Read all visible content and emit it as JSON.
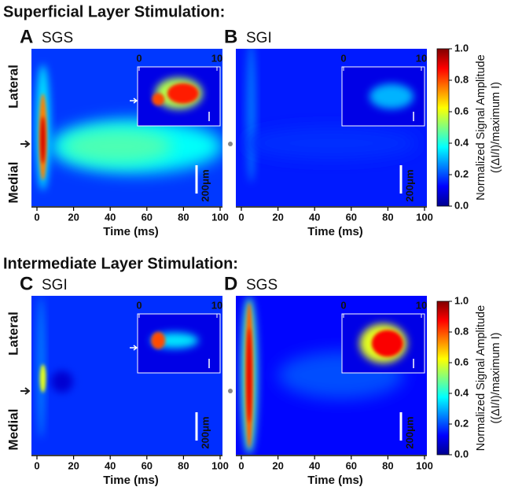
{
  "section_titles": [
    "Superficial Layer Stimulation:",
    "Intermediate Layer Stimulation:"
  ],
  "chart_data": [
    {
      "type": "heatmap",
      "label": "A",
      "title": "SGS",
      "xlabel": "Time (ms)",
      "xlim": [
        0,
        100
      ],
      "xticks": [
        0,
        20,
        40,
        60,
        80,
        100
      ],
      "ylabels": [
        "Lateral",
        "Medial"
      ],
      "inset_xlim": [
        0,
        10
      ],
      "inset_xticks": [
        0,
        10
      ],
      "scalebar_label": "200μm"
    },
    {
      "type": "heatmap",
      "label": "B",
      "title": "SGI",
      "xlabel": "Time (ms)",
      "xlim": [
        0,
        100
      ],
      "xticks": [
        0,
        20,
        40,
        60,
        80,
        100
      ],
      "inset_xlim": [
        0,
        10
      ],
      "inset_xticks": [
        0,
        10
      ],
      "scalebar_label": "200μm",
      "colorbar_label": [
        "Normalized Signal Amplitude",
        "((ΔI/I)/maximum I)"
      ],
      "colorbar_lim": [
        0,
        1
      ],
      "colorbar_ticks": [
        {
          "value": 0,
          "label": "0.0"
        },
        {
          "value": 0.2,
          "label": "0.2"
        },
        {
          "value": 0.4,
          "label": "0.4"
        },
        {
          "value": 0.6,
          "label": "0.6"
        },
        {
          "value": 0.8,
          "label": "0.8"
        },
        {
          "value": 1,
          "label": "1.0"
        }
      ]
    },
    {
      "type": "heatmap",
      "label": "C",
      "title": "SGI",
      "xlabel": "Time (ms)",
      "xlim": [
        0,
        100
      ],
      "xticks": [
        0,
        20,
        40,
        60,
        80,
        100
      ],
      "ylabels": [
        "Lateral",
        "Medial"
      ],
      "inset_xlim": [
        0,
        10
      ],
      "inset_xticks": [
        0,
        10
      ],
      "scalebar_label": "200μm"
    },
    {
      "type": "heatmap",
      "label": "D",
      "title": "SGS",
      "xlabel": "Time (ms)",
      "xlim": [
        0,
        100
      ],
      "xticks": [
        0,
        20,
        40,
        60,
        80,
        100
      ],
      "inset_xlim": [
        0,
        10
      ],
      "inset_xticks": [
        0,
        10
      ],
      "scalebar_label": "200μm",
      "colorbar_label": [
        "Normalized Signal Amplitude",
        "((ΔI/I)/maximum I)"
      ],
      "colorbar_lim": [
        0,
        1
      ],
      "colorbar_ticks": [
        {
          "value": 0,
          "label": "0.0"
        },
        {
          "value": 0.2,
          "label": "0.2"
        },
        {
          "value": 0.4,
          "label": "0.4"
        },
        {
          "value": 0.6,
          "label": "0.6"
        },
        {
          "value": 0.8,
          "label": "0.8"
        },
        {
          "value": 1,
          "label": "1.0"
        }
      ]
    }
  ]
}
